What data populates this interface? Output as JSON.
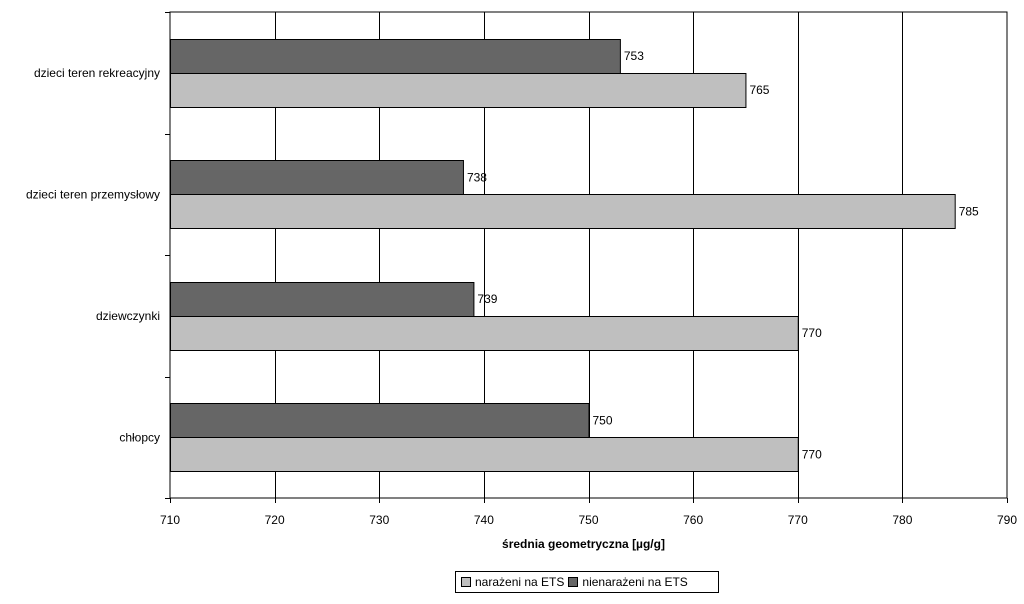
{
  "chart_data": {
    "type": "bar",
    "orientation": "horizontal",
    "categories": [
      "dzieci teren rekreacyjny",
      "dzieci teren przemysłowy",
      "dziewczynki",
      "chłopcy"
    ],
    "series": [
      {
        "name": "nienarażeni na ETS",
        "values": [
          753,
          738,
          739,
          750
        ],
        "color": "#666666"
      },
      {
        "name": "narażeni na ETS",
        "values": [
          765,
          785,
          770,
          770
        ],
        "color": "#bfbfbf"
      }
    ],
    "xlabel": "średnia geometryczna [µg/g]",
    "xlim": [
      710,
      790
    ],
    "xticks": [
      710,
      720,
      730,
      740,
      750,
      760,
      770,
      780,
      790
    ],
    "grid": true,
    "legend": "bottom",
    "legend_order": [
      "narażeni na ETS",
      "nienarażeni na ETS"
    ]
  }
}
